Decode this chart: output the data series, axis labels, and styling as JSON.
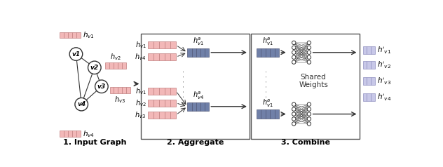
{
  "bg_color": "#ffffff",
  "pink_color": "#f2b8b8",
  "pink_border": "#c08080",
  "dark_slate": "#7080a8",
  "dark_slate_border": "#505878",
  "light_purple": "#c8c8e8",
  "light_purple_border": "#9090c0",
  "node_color": "#ffffff",
  "node_border": "#222222",
  "box_border": "#555555",
  "section1_label": "1. Input Graph",
  "section2_label": "2. Aggregate",
  "section3_label": "3. Combine",
  "agg_result_top": "$h^a_{v1}$",
  "agg_result_bot": "$h^a_{v4}$",
  "combine_top_label": "$h^a_{v1}$",
  "combine_bot_label": "$h^a_{v1}$",
  "shared_weights_label": "Shared\nWeights",
  "output_labels": [
    "$h'_{v1}$",
    "$h'_{v2}$",
    "$h'_{v3}$",
    "$h'_{v4}$"
  ],
  "feat_label_v1": "$h_{v1}$",
  "feat_label_v2": "$h_{v2}$",
  "feat_label_v3": "$h_{v3}$",
  "feat_label_v4": "$h_{v4}$"
}
